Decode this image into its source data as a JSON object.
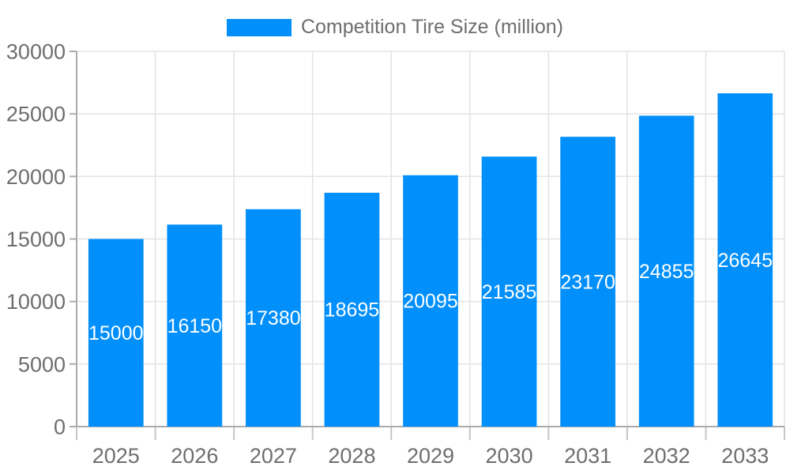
{
  "chart_data": {
    "type": "bar",
    "title": "",
    "categories": [
      "2025",
      "2026",
      "2027",
      "2028",
      "2029",
      "2030",
      "2031",
      "2032",
      "2033"
    ],
    "series": [
      {
        "name": "Competition Tire Size (million)",
        "values": [
          15000,
          16150,
          17380,
          18695,
          20095,
          21585,
          23170,
          24855,
          26645
        ]
      }
    ],
    "xlabel": "",
    "ylabel": "",
    "ylim": [
      0,
      30000
    ],
    "yticks": [
      0,
      5000,
      10000,
      15000,
      20000,
      25000,
      30000
    ],
    "grid": true,
    "legend_position": "top",
    "value_label_position": "inside-center"
  },
  "colors": {
    "bar": "#008ffb",
    "grid": "#e3e3e3",
    "axis": "#ababab",
    "tick": "#c6c6c6",
    "label": "#6e6e6e",
    "value_label": "#ffffff",
    "background": "#ffffff"
  }
}
